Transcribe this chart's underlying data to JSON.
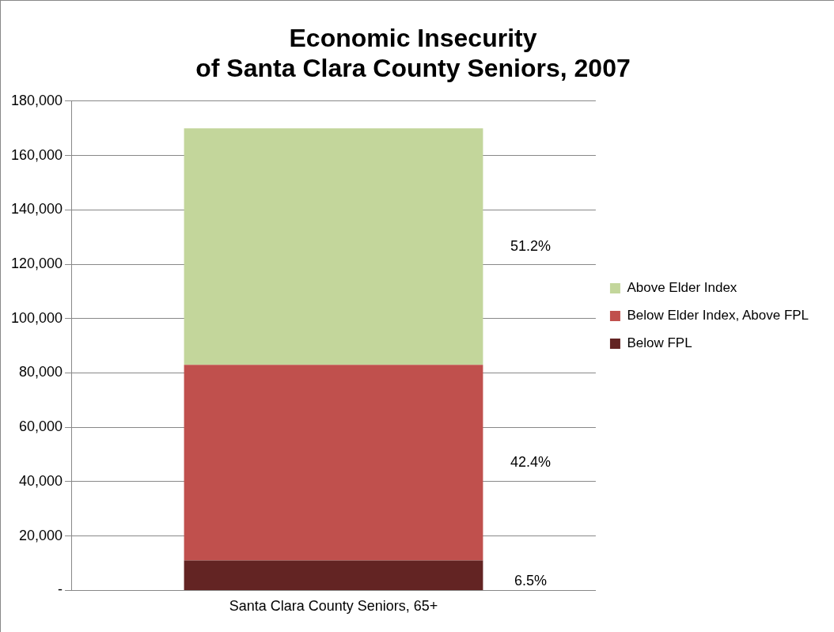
{
  "chart_data": {
    "type": "bar",
    "stacked": true,
    "title": "Economic Insecurity\nof Santa Clara County Seniors, 2007",
    "categories": [
      "Santa Clara County Seniors, 65+"
    ],
    "series": [
      {
        "name": "Below FPL",
        "color": "#632423",
        "values": [
          11000
        ]
      },
      {
        "name": "Below Elder Index, Above FPL",
        "color": "#c0504d",
        "values": [
          72000
        ]
      },
      {
        "name": "Above Elder Index",
        "color": "#c3d69b",
        "values": [
          87000
        ]
      }
    ],
    "ylim": [
      0,
      180000
    ],
    "yticks": [
      {
        "value": 0,
        "label": "-"
      },
      {
        "value": 20000,
        "label": "20,000"
      },
      {
        "value": 40000,
        "label": "40,000"
      },
      {
        "value": 60000,
        "label": "60,000"
      },
      {
        "value": 80000,
        "label": "80,000"
      },
      {
        "value": 100000,
        "label": "100,000"
      },
      {
        "value": 120000,
        "label": "120,000"
      },
      {
        "value": 140000,
        "label": "140,000"
      },
      {
        "value": 160000,
        "label": "160,000"
      },
      {
        "value": 180000,
        "label": "180,000"
      }
    ],
    "grid": "y",
    "legend": "right",
    "annotations": [
      "51.2%",
      "42.4%",
      "6.5%"
    ]
  }
}
